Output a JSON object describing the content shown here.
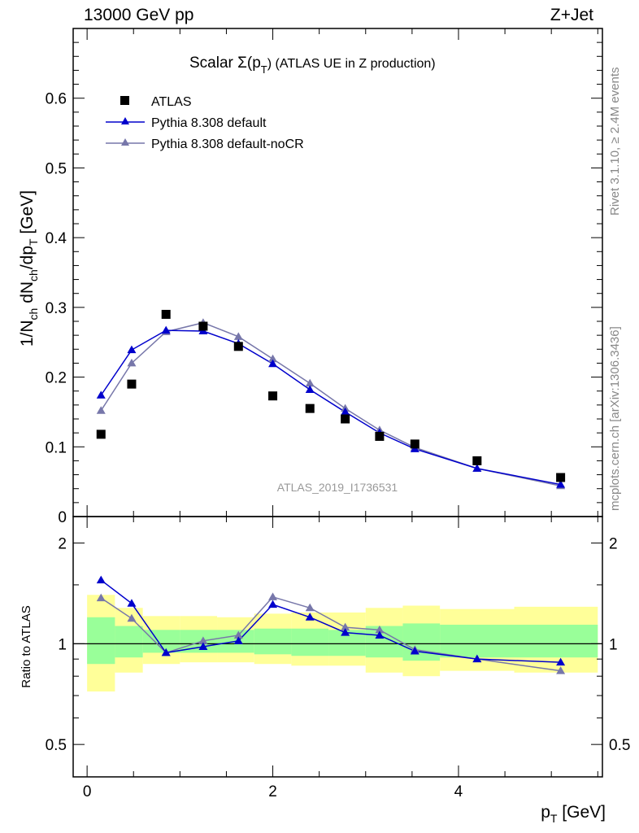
{
  "header": {
    "left": "13000 GeV pp",
    "right": "Z+Jet"
  },
  "side_labels": {
    "rivet": "Rivet 3.1.10, ≥ 2.4M events",
    "mcplots": "mcplots.cern.ch [arXiv:1306.3436]"
  },
  "watermark": "ATLAS_2019_I1736531",
  "main_title": {
    "prefix": "Scalar Σ(p",
    "sub": "T",
    "suffix": ") (ATLAS UE in Z production)"
  },
  "y_axis_label": {
    "p1": "1/N",
    "s1": "ch",
    "p2": " dN",
    "s2": "ch",
    "p3": "/dp",
    "s3": "T",
    "p4": " [GeV]"
  },
  "ratio_ylabel": "Ratio to ATLAS",
  "x_axis_label": {
    "p": "p",
    "sub": "T",
    "unit": " [GeV]"
  },
  "colors": {
    "data": "#000000",
    "default": "#0000cc",
    "nocr": "#7777aa",
    "band_inner": "#99ff99",
    "band_outer": "#ffff99"
  },
  "chart_data": [
    {
      "type": "scatter",
      "xlim": [
        -0.15,
        5.55
      ],
      "ylim": [
        0,
        0.7
      ],
      "y_ticks": [
        "0.1",
        "0.2",
        "0.3",
        "0.4",
        "0.5",
        "0.6"
      ],
      "bin_edges": [
        0,
        0.3,
        0.6,
        1.0,
        1.4,
        1.8,
        2.2,
        2.6,
        3.0,
        3.4,
        3.8,
        4.6,
        5.5
      ],
      "x": [
        0.15,
        0.48,
        0.85,
        1.25,
        1.63,
        2.0,
        2.4,
        2.78,
        3.15,
        3.53,
        4.2,
        5.1
      ],
      "legend": [
        "ATLAS",
        "Pythia 8.308 default",
        "Pythia 8.308 default-noCR"
      ],
      "series": [
        {
          "name": "ATLAS",
          "marker": "square",
          "values": [
            0.118,
            0.19,
            0.29,
            0.273,
            0.244,
            0.173,
            0.155,
            0.14,
            0.115,
            0.104,
            0.08,
            0.056
          ]
        },
        {
          "name": "Pythia 8.308 default",
          "marker": "triangle",
          "values": [
            0.174,
            0.239,
            0.267,
            0.266,
            0.248,
            0.219,
            0.182,
            0.15,
            0.12,
            0.097,
            0.069,
            0.046
          ]
        },
        {
          "name": "Pythia 8.308 default-noCR",
          "marker": "triangle",
          "values": [
            0.152,
            0.22,
            0.265,
            0.278,
            0.258,
            0.226,
            0.191,
            0.155,
            0.124,
            0.099,
            0.069,
            0.044
          ]
        }
      ]
    },
    {
      "type": "line",
      "ylabel": "Ratio to ATLAS",
      "ylim": [
        0.4,
        2.4
      ],
      "y_ticks": [
        "0.5",
        "1",
        "2"
      ],
      "x_ticks": [
        "0",
        "2",
        "4"
      ],
      "xlim": [
        -0.15,
        5.55
      ],
      "bin_edges": [
        0,
        0.3,
        0.6,
        1.0,
        1.4,
        1.8,
        2.2,
        2.6,
        3.0,
        3.4,
        3.8,
        4.6,
        5.5
      ],
      "band_inner": {
        "lo": [
          0.87,
          0.91,
          0.94,
          0.94,
          0.94,
          0.93,
          0.92,
          0.92,
          0.91,
          0.89,
          0.91,
          0.91
        ],
        "hi": [
          1.2,
          1.13,
          1.1,
          1.1,
          1.1,
          1.11,
          1.11,
          1.1,
          1.13,
          1.15,
          1.14,
          1.14
        ]
      },
      "band_outer": {
        "lo": [
          0.72,
          0.82,
          0.87,
          0.88,
          0.88,
          0.87,
          0.86,
          0.86,
          0.82,
          0.8,
          0.83,
          0.82
        ],
        "hi": [
          1.4,
          1.28,
          1.21,
          1.21,
          1.2,
          1.23,
          1.24,
          1.24,
          1.28,
          1.3,
          1.27,
          1.29
        ]
      },
      "series": [
        {
          "name": "Pythia 8.308 default",
          "values": [
            1.55,
            1.32,
            0.94,
            0.98,
            1.02,
            1.31,
            1.2,
            1.08,
            1.06,
            0.95,
            0.9,
            0.88
          ]
        },
        {
          "name": "Pythia 8.308 default-noCR",
          "values": [
            1.37,
            1.19,
            0.94,
            1.02,
            1.06,
            1.38,
            1.28,
            1.12,
            1.1,
            0.96,
            0.9,
            0.83
          ]
        }
      ]
    }
  ]
}
